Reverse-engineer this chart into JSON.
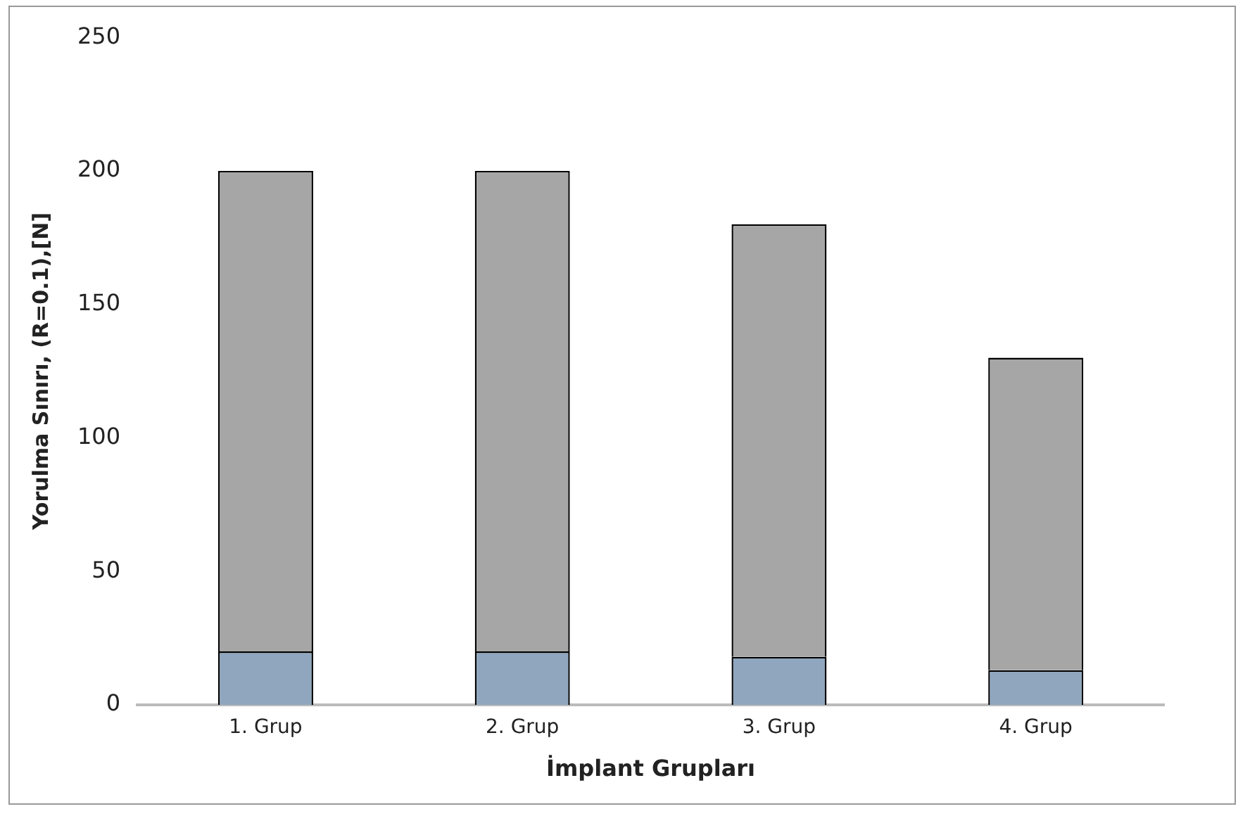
{
  "chart_data": {
    "type": "bar",
    "stacked": true,
    "xlabel": "İmplant Grupları",
    "ylabel": "Yorulma Sınırı, (R=0.1),[N]",
    "categories": [
      "1. Grup",
      "2. Grup",
      "3. Grup",
      "4. Grup"
    ],
    "series": [
      {
        "color": "#8fa6be",
        "values": [
          20,
          20,
          18,
          13
        ]
      },
      {
        "color": "#a6a6a6",
        "values": [
          180,
          180,
          162,
          117
        ]
      }
    ],
    "ylim": [
      0,
      250
    ],
    "yticks": [
      0,
      50,
      100,
      150,
      200,
      250
    ],
    "grid": false,
    "legend": false
  }
}
